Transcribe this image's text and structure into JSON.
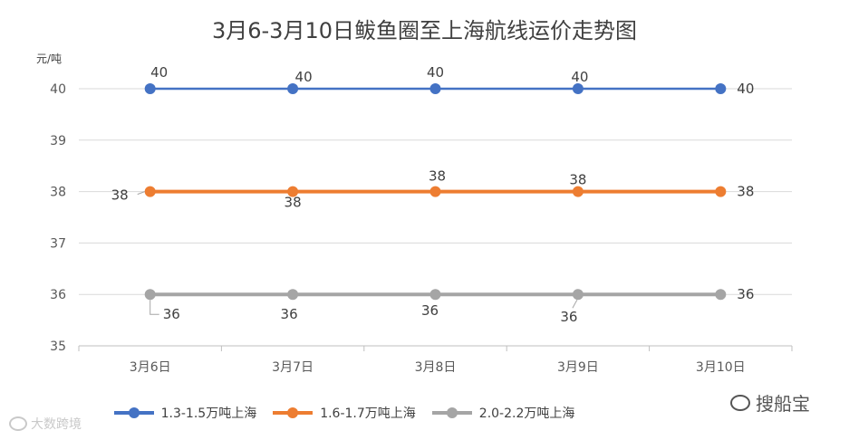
{
  "chart_data": {
    "type": "line",
    "title": "3月6-3月10日鲅鱼圈至上海航线运价走势图",
    "ylabel": "元/吨",
    "xlabel": "",
    "categories": [
      "3月6日",
      "3月7日",
      "3月8日",
      "3月9日",
      "3月10日"
    ],
    "ylim": [
      35,
      40
    ],
    "yticks": [
      35,
      36,
      37,
      38,
      39,
      40
    ],
    "grid": true,
    "legend_position": "bottom",
    "series": [
      {
        "name": "1.3-1.5万吨上海",
        "color": "#4472C4",
        "values": [
          40,
          40,
          40,
          40,
          40
        ],
        "labels": [
          "40",
          "40",
          "40",
          "40",
          "40"
        ]
      },
      {
        "name": "1.6-1.7万吨上海",
        "color": "#ED7D31",
        "values": [
          38,
          38,
          38,
          38,
          38
        ],
        "labels": [
          "38",
          "38",
          "38",
          "38",
          "38"
        ]
      },
      {
        "name": "2.0-2.2万吨上海",
        "color": "#A5A5A5",
        "values": [
          36,
          36,
          36,
          36,
          36
        ],
        "labels": [
          "36",
          "36",
          "36",
          "36",
          "36"
        ]
      }
    ]
  },
  "watermarks": {
    "left": "大数跨境",
    "right": "搜船宝"
  }
}
